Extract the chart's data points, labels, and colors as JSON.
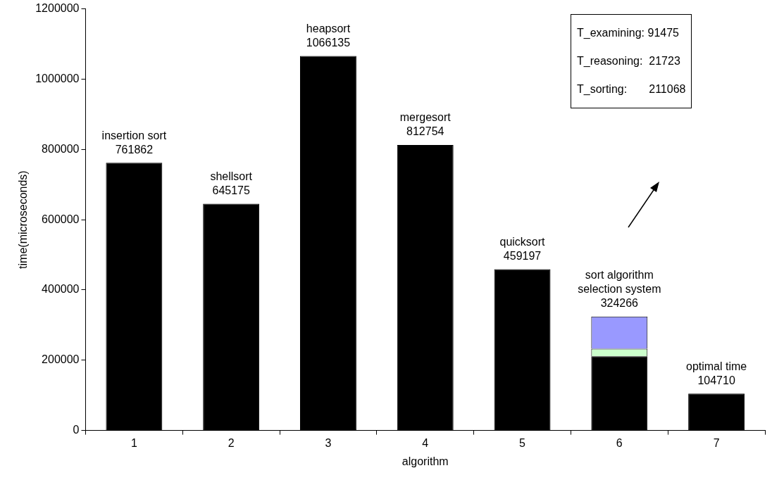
{
  "chart_data": {
    "type": "bar",
    "stacked": true,
    "xlabel": "algorithm",
    "ylabel": "time(microseconds)",
    "categories": [
      "1",
      "2",
      "3",
      "4",
      "5",
      "6",
      "7"
    ],
    "series": [
      {
        "color": "#000000",
        "values": [
          761862,
          645175,
          1066135,
          812754,
          459197,
          211068,
          104710
        ]
      },
      {
        "color": "#ccffcc",
        "values": [
          null,
          null,
          null,
          null,
          null,
          21723,
          null
        ]
      },
      {
        "color": "#9999ff",
        "values": [
          null,
          null,
          null,
          null,
          null,
          91475,
          null
        ]
      }
    ],
    "totals": [
      "761862",
      "645175",
      "1066135",
      "812754",
      "459197",
      "324266",
      "104710"
    ],
    "ylim": [
      0,
      1200000
    ],
    "yticks": [
      0,
      200000,
      400000,
      600000,
      800000,
      1000000,
      1200000
    ],
    "grid": false,
    "legend": false,
    "annotations": [
      {
        "text": "insertion sort",
        "x": "1",
        "y": 761862
      },
      {
        "text": "shellsort",
        "x": "2",
        "y": 645175
      },
      {
        "text": "heapsort",
        "x": "3",
        "y": 1066135
      },
      {
        "text": "mergesort",
        "x": "4",
        "y": 812754
      },
      {
        "text": "quicksort",
        "x": "5",
        "y": 459197
      },
      {
        "text": "sort algorithm selection system",
        "x": "6",
        "y": 324266
      },
      {
        "text": "optimal time",
        "x": "7",
        "y": 104710
      },
      "T_examining: 91475",
      "T_reasoning:  21723",
      "T_sorting:       211068"
    ]
  }
}
